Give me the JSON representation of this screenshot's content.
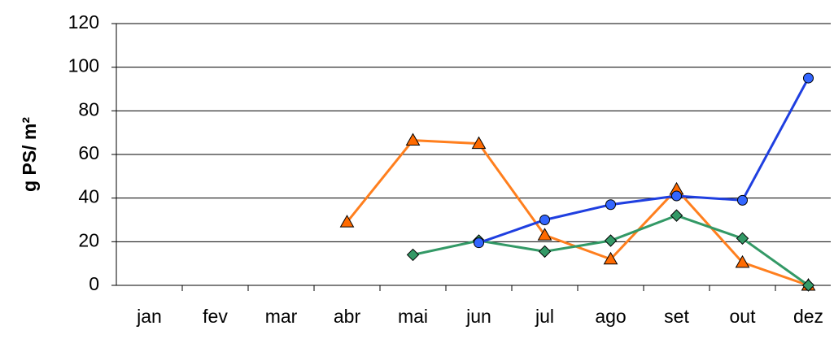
{
  "chart_data": {
    "type": "line",
    "y_label": "g PS/ m²",
    "categories": [
      "jan",
      "fev",
      "mar",
      "abr",
      "mai",
      "jun",
      "jul",
      "ago",
      "set",
      "out",
      "dez"
    ],
    "series": [
      {
        "color": "#ff7f1e",
        "marker": "triangle",
        "values": [
          null,
          null,
          null,
          29,
          66.5,
          65,
          23,
          12,
          44,
          10.5,
          0
        ]
      },
      {
        "color": "#339966",
        "marker": "diamond",
        "values": [
          null,
          null,
          null,
          null,
          14,
          20.5,
          15.5,
          20.5,
          32,
          21.5,
          0
        ]
      },
      {
        "color": "#1f3fe0",
        "marker": "circle",
        "values": [
          null,
          null,
          null,
          null,
          null,
          19.5,
          30,
          37,
          41,
          39,
          95
        ]
      }
    ],
    "ylim": [
      0,
      120
    ],
    "yticks": [
      0,
      20,
      40,
      60,
      80,
      100,
      120
    ],
    "grid": true
  }
}
